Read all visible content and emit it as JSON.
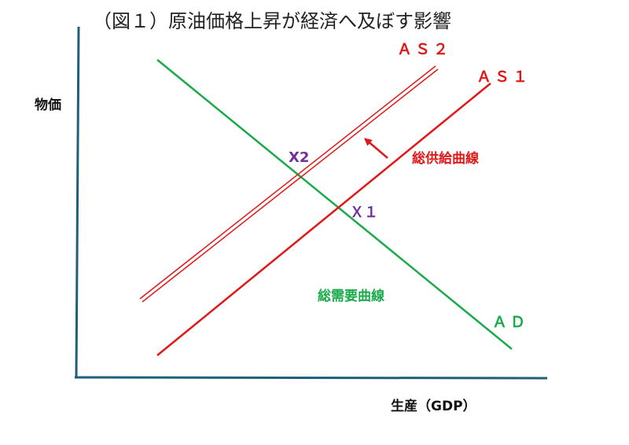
{
  "title": "（図１）原油価格上昇が経済へ及ぼす影響",
  "axes": {
    "y_label": "物価",
    "x_label": "生産（GDP）"
  },
  "curves": {
    "as2_label": "ＡＳ２",
    "as1_label": "ＡＳ１",
    "ad_label": "ＡＤ",
    "supply_name": "総供給曲線",
    "demand_name": "総需要曲線"
  },
  "points": {
    "x1_label": "Ｘ１",
    "x2_label": "X2"
  },
  "colors": {
    "axis": "#1f5f7a",
    "supply": "#e01818",
    "demand": "#1aaa4a",
    "point": "#7030a0"
  },
  "icons": {
    "shift_arrow": "arrow-up-left-icon"
  }
}
